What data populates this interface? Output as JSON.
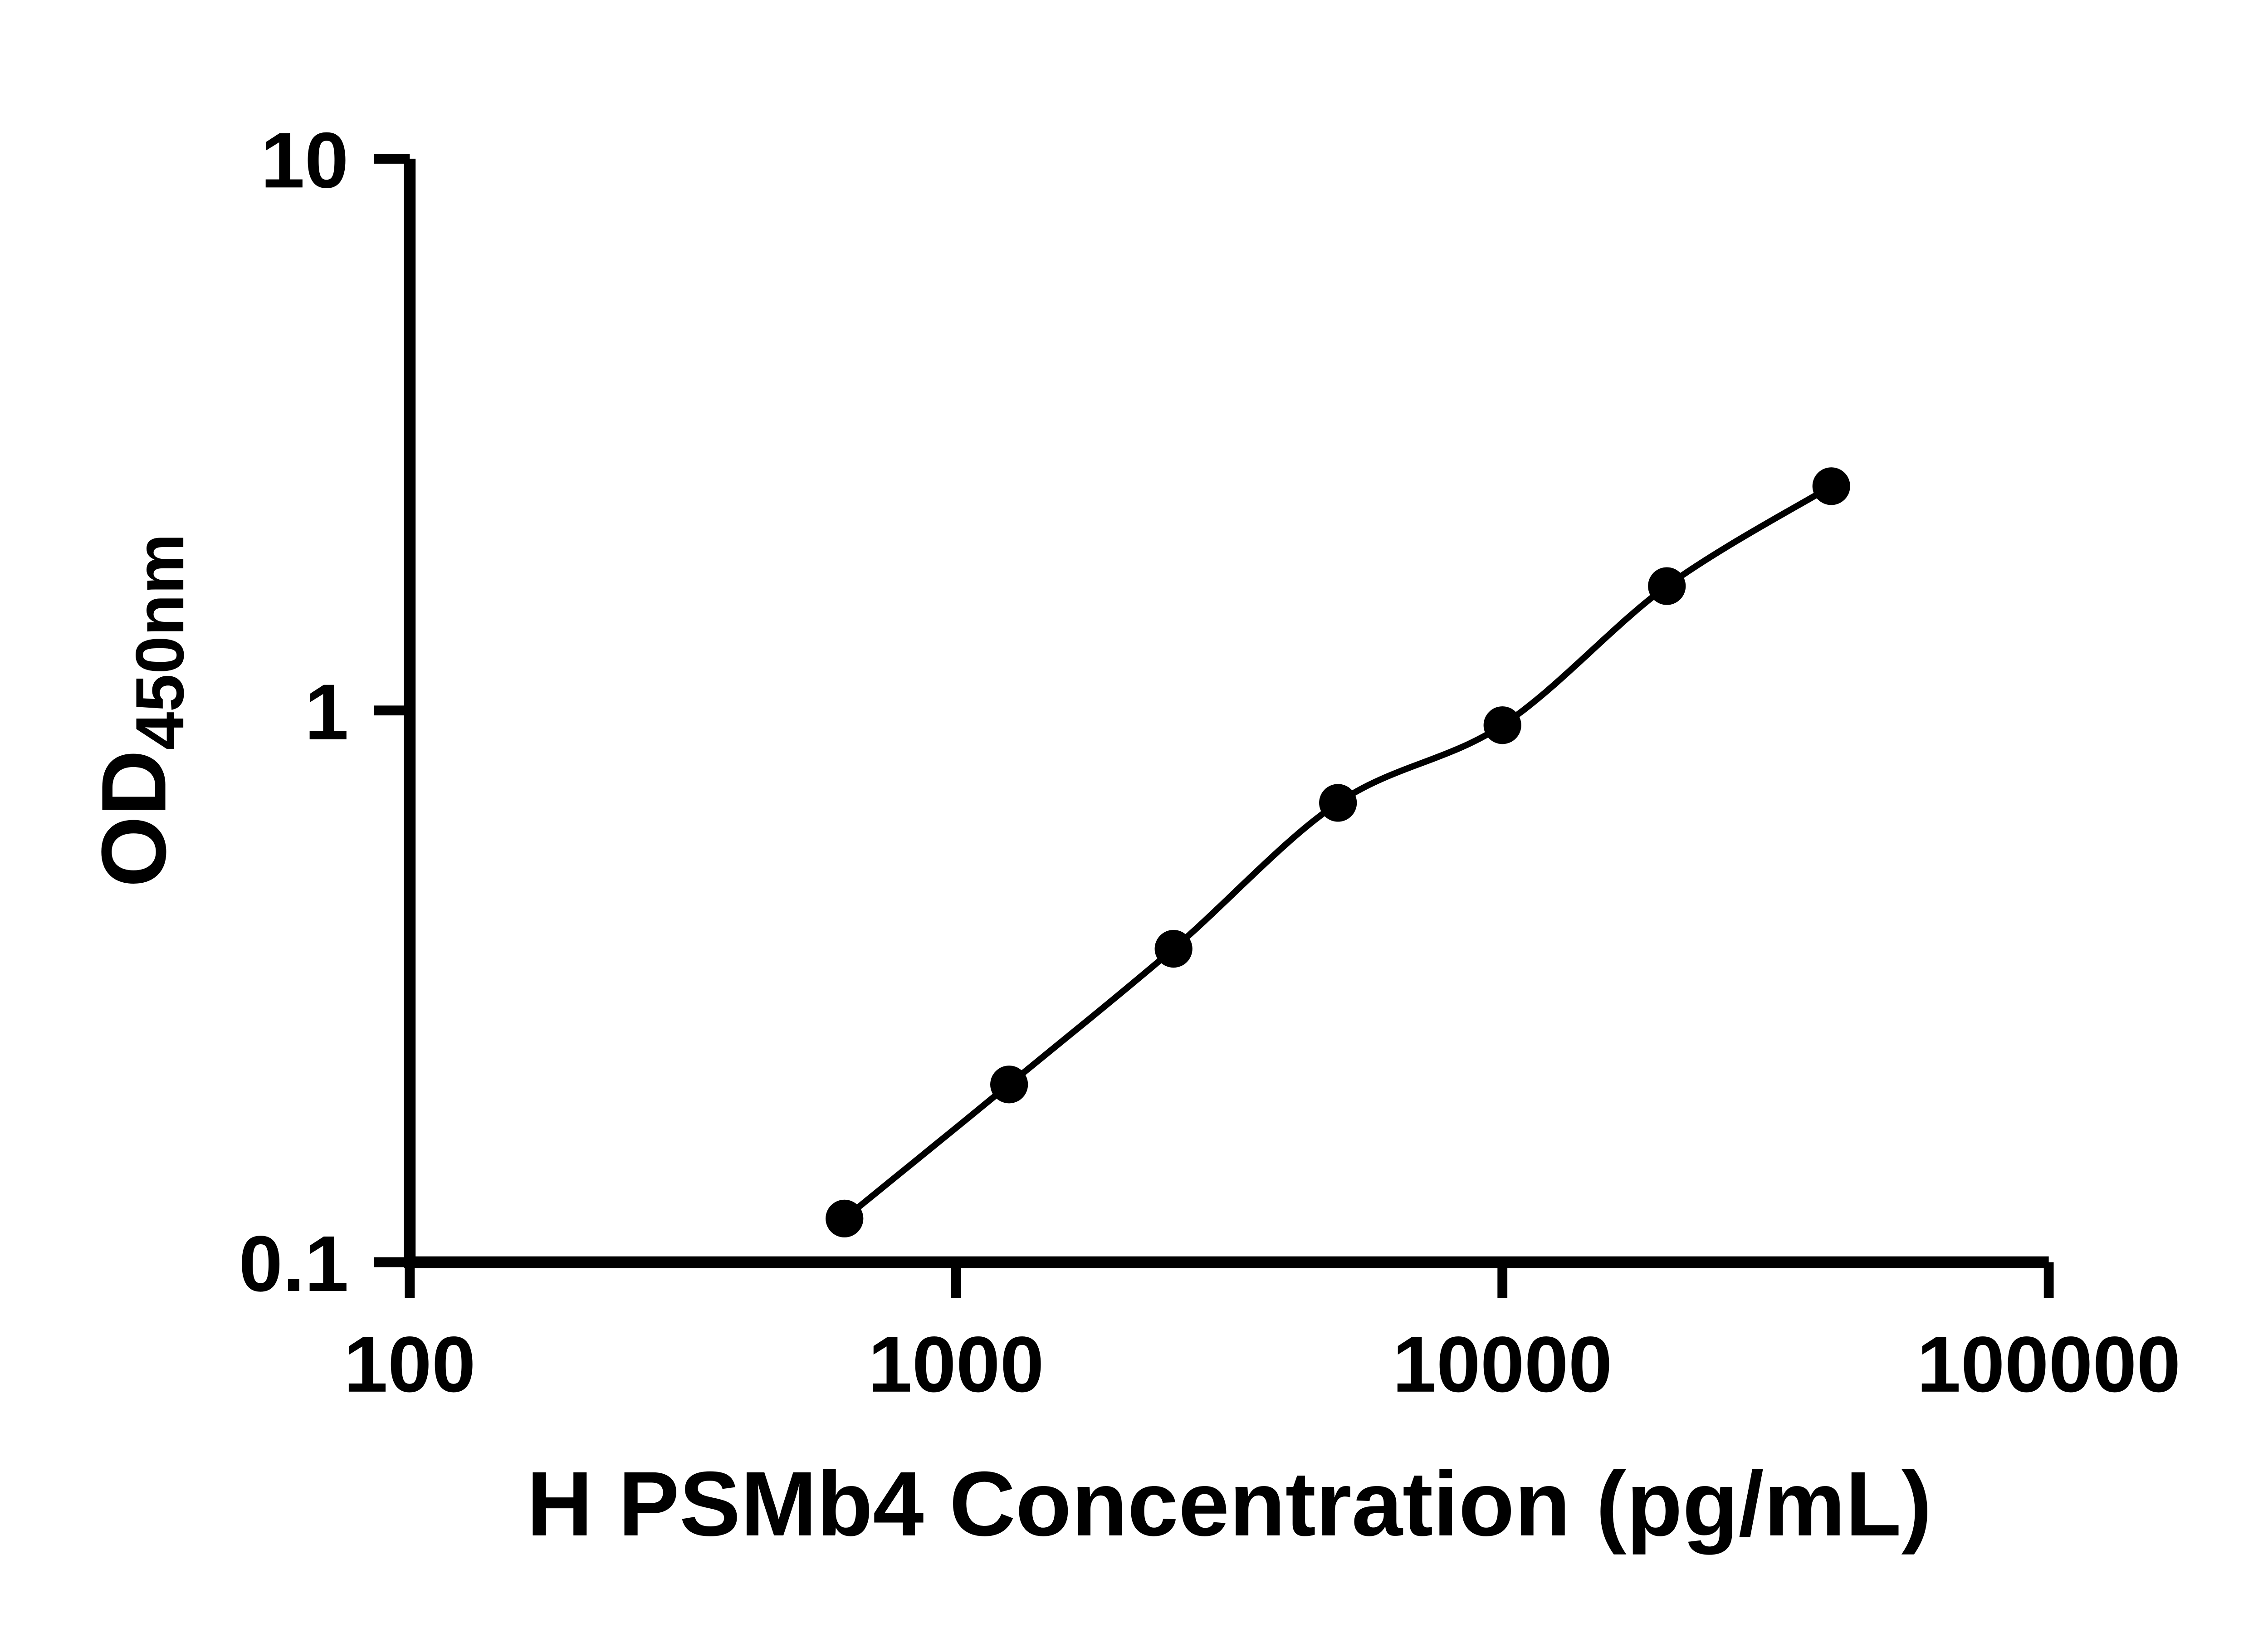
{
  "figure": {
    "background_color": "#ffffff"
  },
  "chart_data": {
    "type": "scatter",
    "subtype": "elisa-standard-curve",
    "title": "",
    "xlabel": "H PSMb4 Concentration (pg/mL)",
    "ylabel": "OD",
    "ylabel_subscript": "450nm",
    "xscale": "log",
    "yscale": "log",
    "xlim": [
      100,
      100000
    ],
    "ylim": [
      0.1,
      10
    ],
    "x_ticks": [
      100,
      1000,
      10000,
      100000
    ],
    "x_tick_labels": [
      "100",
      "1000",
      "10000",
      "100000"
    ],
    "y_ticks": [
      0.1,
      1,
      10
    ],
    "y_tick_labels": [
      "0.1",
      "1",
      "10"
    ],
    "grid": false,
    "legend": false,
    "axis_color": "#000000",
    "series": [
      {
        "name": "standard-curve",
        "marker": "filled-circle",
        "line": "smooth",
        "color": "#000000",
        "x": [
          625,
          1250,
          2500,
          5000,
          10000,
          20000,
          40000
        ],
        "y": [
          0.12,
          0.21,
          0.37,
          0.68,
          0.94,
          1.68,
          2.55
        ]
      }
    ]
  }
}
